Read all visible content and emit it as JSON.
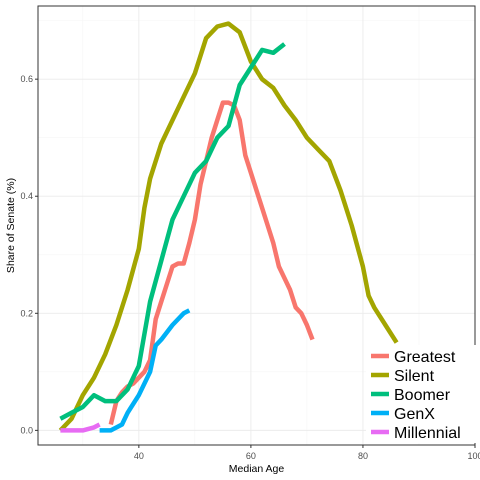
{
  "chart_data": {
    "type": "line",
    "xlabel": "Median Age",
    "ylabel": "Share of Senate (%)",
    "xlim": [
      22,
      100
    ],
    "ylim": [
      -0.025,
      0.725
    ],
    "x_ticks": [
      40,
      60,
      80,
      100
    ],
    "y_ticks": [
      0.0,
      0.2,
      0.4,
      0.6
    ],
    "x_tick_labels": [
      "40",
      "60",
      "80",
      "100"
    ],
    "y_tick_labels": [
      "0.0",
      "0.2",
      "0.4",
      "0.6"
    ],
    "grid": true,
    "legend_position": "bottom-right",
    "series": [
      {
        "name": "Greatest",
        "color": "#F8766D",
        "points": [
          [
            35,
            0.01
          ],
          [
            36,
            0.05
          ],
          [
            37,
            0.065
          ],
          [
            38,
            0.075
          ],
          [
            39,
            0.08
          ],
          [
            40,
            0.09
          ],
          [
            41,
            0.1
          ],
          [
            42,
            0.12
          ],
          [
            43,
            0.19
          ],
          [
            44,
            0.22
          ],
          [
            45,
            0.25
          ],
          [
            46,
            0.28
          ],
          [
            47,
            0.285
          ],
          [
            48,
            0.285
          ],
          [
            49,
            0.32
          ],
          [
            50,
            0.36
          ],
          [
            51,
            0.42
          ],
          [
            52,
            0.46
          ],
          [
            53,
            0.5
          ],
          [
            54,
            0.53
          ],
          [
            55,
            0.56
          ],
          [
            56,
            0.56
          ],
          [
            57,
            0.555
          ],
          [
            58,
            0.53
          ],
          [
            59,
            0.47
          ],
          [
            60,
            0.44
          ],
          [
            61,
            0.41
          ],
          [
            62,
            0.38
          ],
          [
            63,
            0.35
          ],
          [
            64,
            0.32
          ],
          [
            65,
            0.28
          ],
          [
            66,
            0.26
          ],
          [
            67,
            0.24
          ],
          [
            68,
            0.21
          ],
          [
            69,
            0.2
          ],
          [
            70,
            0.18
          ],
          [
            71,
            0.155
          ]
        ]
      },
      {
        "name": "Silent",
        "color": "#A3A500",
        "points": [
          [
            26,
            0.0
          ],
          [
            28,
            0.02
          ],
          [
            30,
            0.06
          ],
          [
            32,
            0.09
          ],
          [
            34,
            0.13
          ],
          [
            36,
            0.18
          ],
          [
            38,
            0.24
          ],
          [
            40,
            0.31
          ],
          [
            41,
            0.38
          ],
          [
            42,
            0.43
          ],
          [
            44,
            0.49
          ],
          [
            46,
            0.53
          ],
          [
            48,
            0.57
          ],
          [
            50,
            0.61
          ],
          [
            52,
            0.67
          ],
          [
            54,
            0.69
          ],
          [
            56,
            0.695
          ],
          [
            58,
            0.68
          ],
          [
            60,
            0.63
          ],
          [
            62,
            0.6
          ],
          [
            64,
            0.585
          ],
          [
            66,
            0.555
          ],
          [
            68,
            0.53
          ],
          [
            70,
            0.5
          ],
          [
            72,
            0.48
          ],
          [
            74,
            0.46
          ],
          [
            76,
            0.41
          ],
          [
            78,
            0.35
          ],
          [
            80,
            0.28
          ],
          [
            81,
            0.23
          ],
          [
            82,
            0.21
          ],
          [
            84,
            0.18
          ],
          [
            86,
            0.15
          ]
        ]
      },
      {
        "name": "Boomer",
        "color": "#00BF7D",
        "points": [
          [
            26,
            0.02
          ],
          [
            28,
            0.03
          ],
          [
            30,
            0.04
          ],
          [
            32,
            0.06
          ],
          [
            34,
            0.05
          ],
          [
            36,
            0.05
          ],
          [
            38,
            0.07
          ],
          [
            40,
            0.11
          ],
          [
            42,
            0.22
          ],
          [
            44,
            0.29
          ],
          [
            46,
            0.36
          ],
          [
            48,
            0.4
          ],
          [
            50,
            0.44
          ],
          [
            52,
            0.46
          ],
          [
            54,
            0.5
          ],
          [
            56,
            0.52
          ],
          [
            58,
            0.59
          ],
          [
            60,
            0.62
          ],
          [
            62,
            0.65
          ],
          [
            64,
            0.645
          ],
          [
            66,
            0.66
          ]
        ]
      },
      {
        "name": "GenX",
        "color": "#00B0F6",
        "points": [
          [
            33,
            0.0
          ],
          [
            35,
            0.0
          ],
          [
            37,
            0.01
          ],
          [
            38,
            0.03
          ],
          [
            40,
            0.06
          ],
          [
            42,
            0.1
          ],
          [
            43,
            0.145
          ],
          [
            44,
            0.155
          ],
          [
            46,
            0.18
          ],
          [
            48,
            0.2
          ],
          [
            49,
            0.205
          ]
        ]
      },
      {
        "name": "Millennial",
        "color": "#E76BF3",
        "points": [
          [
            26,
            0.0
          ],
          [
            28,
            0.0
          ],
          [
            30,
            0.0
          ],
          [
            32,
            0.005
          ],
          [
            33,
            0.01
          ]
        ]
      }
    ]
  }
}
